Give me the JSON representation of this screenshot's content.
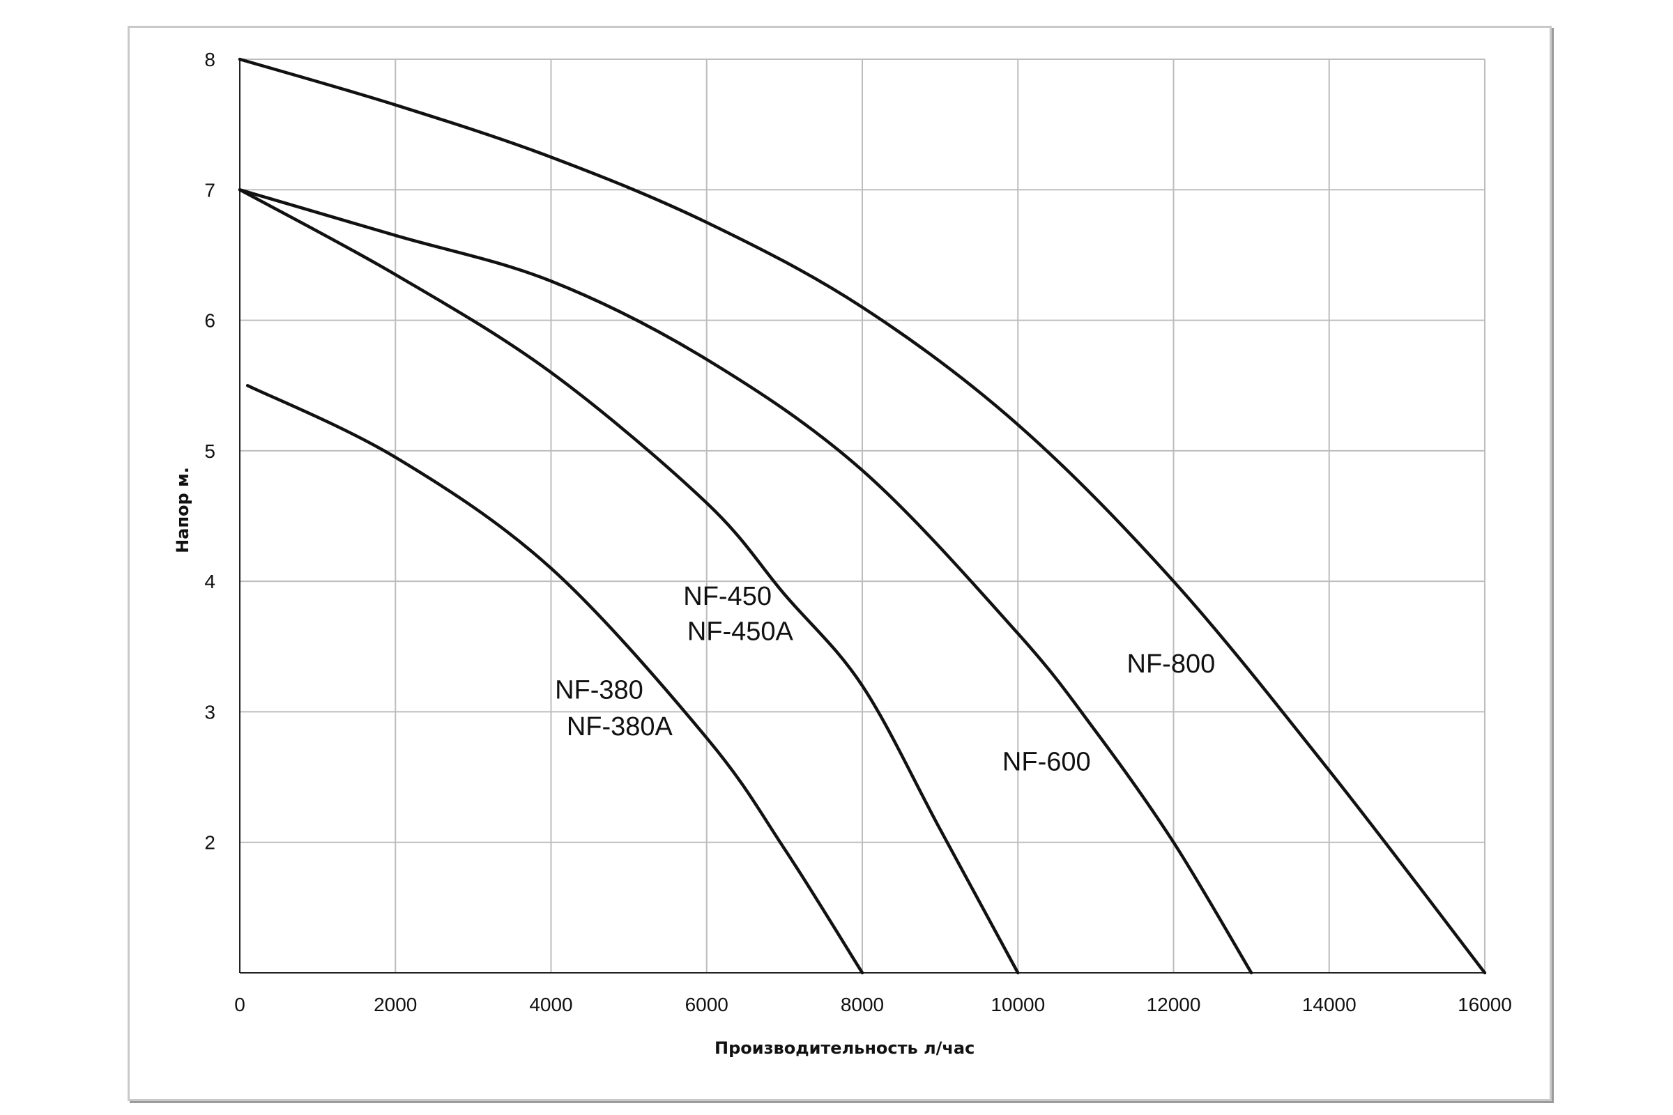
{
  "chart_data": {
    "type": "line",
    "title": "",
    "xlabel": "Производительность  л/час",
    "ylabel": "Напор м.",
    "xlim": [
      0,
      16000
    ],
    "ylim": [
      1,
      8
    ],
    "xticks": [
      0,
      2000,
      4000,
      6000,
      8000,
      10000,
      12000,
      14000,
      16000
    ],
    "yticks": [
      2,
      3,
      4,
      5,
      6,
      7,
      8
    ],
    "grid": true,
    "legend": "none",
    "series": [
      {
        "x": [
          100,
          2000,
          4000,
          6000,
          7000,
          8000
        ],
        "y": [
          5.5,
          4.95,
          4.1,
          2.8,
          1.95,
          1.0
        ]
      },
      {
        "x": [
          0,
          2000,
          4000,
          6000,
          7000,
          8000,
          9000,
          10000
        ],
        "y": [
          7.0,
          6.35,
          5.6,
          4.6,
          3.9,
          3.2,
          2.1,
          1.0
        ]
      },
      {
        "x": [
          0,
          2000,
          4000,
          6000,
          8000,
          10000,
          11000,
          12000,
          13000
        ],
        "y": [
          7.0,
          6.65,
          6.3,
          5.7,
          4.85,
          3.6,
          2.85,
          2.0,
          1.0
        ]
      },
      {
        "x": [
          0,
          2000,
          4000,
          6000,
          8000,
          10000,
          12000,
          14000,
          16000
        ],
        "y": [
          8.0,
          7.65,
          7.25,
          6.75,
          6.1,
          5.2,
          4.0,
          2.55,
          1.0
        ]
      }
    ],
    "annotations": [
      {
        "text": "NF-380",
        "x": 4050,
        "y": 3.1
      },
      {
        "text": "NF-380A",
        "x": 4200,
        "y": 2.82
      },
      {
        "text": "NF-450",
        "x": 5700,
        "y": 3.82
      },
      {
        "text": "NF-450A",
        "x": 5750,
        "y": 3.55
      },
      {
        "text": "NF-600",
        "x": 9800,
        "y": 2.55
      },
      {
        "text": "NF-800",
        "x": 11400,
        "y": 3.3
      }
    ]
  }
}
